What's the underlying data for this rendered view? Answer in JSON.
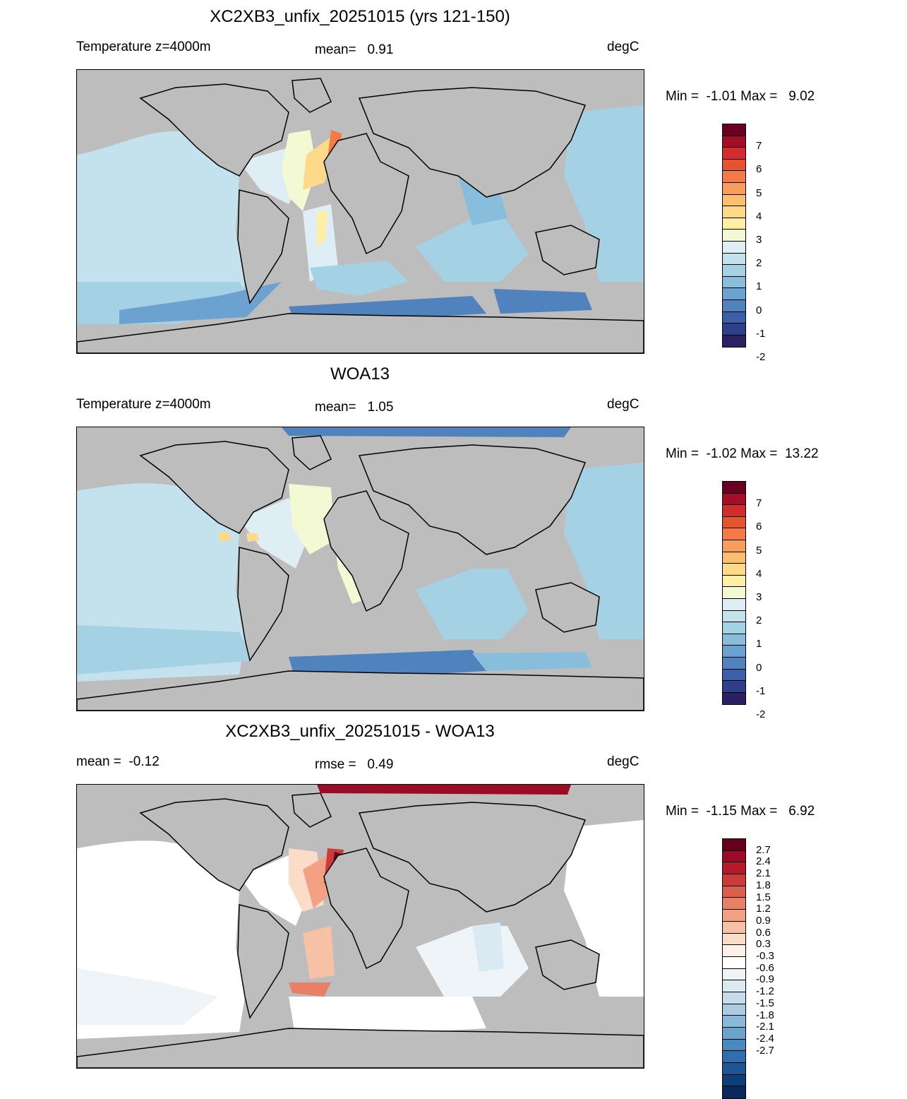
{
  "panels": [
    {
      "title": "XC2XB3_unfix_20251015 (yrs 121-150)",
      "left_label": "Temperature z=4000m",
      "mid_label": "mean=   0.91",
      "right_label": "degC",
      "minmax": "Min =  -1.01 Max =   9.02",
      "colorbar": {
        "colors": [
          "#6b0023",
          "#a50f26",
          "#d42c2c",
          "#e6532f",
          "#f47b46",
          "#f99d58",
          "#fdbf6f",
          "#fed98a",
          "#ffefa4",
          "#f3f9d2",
          "#deeef4",
          "#c3e2ee",
          "#a5d1e5",
          "#88bedc",
          "#6ba2cf",
          "#5082be",
          "#3b5fa8",
          "#2e3f8c",
          "#2c1f63"
        ],
        "labels": [
          "7",
          "6",
          "5",
          "4",
          "3",
          "2",
          "1",
          "0",
          "-1",
          "-2"
        ]
      }
    },
    {
      "title": "WOA13",
      "left_label": "Temperature z=4000m",
      "mid_label": "mean=   1.05",
      "right_label": "degC",
      "minmax": "Min =  -1.02 Max =  13.22",
      "colorbar": {
        "colors": [
          "#6b0023",
          "#a50f26",
          "#d42c2c",
          "#e6532f",
          "#f47b46",
          "#f99d58",
          "#fdbf6f",
          "#fed98a",
          "#ffefa4",
          "#f3f9d2",
          "#deeef4",
          "#c3e2ee",
          "#a5d1e5",
          "#88bedc",
          "#6ba2cf",
          "#5082be",
          "#3b5fa8",
          "#2e3f8c",
          "#2c1f63"
        ],
        "labels": [
          "7",
          "6",
          "5",
          "4",
          "3",
          "2",
          "1",
          "0",
          "-1",
          "-2"
        ]
      }
    },
    {
      "title": "XC2XB3_unfix_20251015 - WOA13",
      "left_label": "mean =  -0.12",
      "mid_label": "rmse =   0.49",
      "right_label": "degC",
      "minmax": "Min =  -1.15 Max =   6.92",
      "colorbar": {
        "colors": [
          "#67001f",
          "#9b0c24",
          "#b8182b",
          "#cc3a3a",
          "#dc5d4b",
          "#e98065",
          "#f2a283",
          "#f7c1a6",
          "#fbdcc8",
          "#fdf0e8",
          "#ffffff",
          "#eef4f8",
          "#dbe9f2",
          "#c4dcec",
          "#a9cce3",
          "#8bb9d9",
          "#6aa3cd",
          "#4989bf",
          "#2f6fae",
          "#1c5696",
          "#0d3f7a",
          "#08295a"
        ],
        "labels": [
          "2.7",
          "2.4",
          "2.1",
          "1.8",
          "1.5",
          "1.2",
          "0.9",
          "0.6",
          "0.3",
          "-0.3",
          "-0.6",
          "-0.9",
          "-1.2",
          "-1.5",
          "-1.8",
          "-2.1",
          "-2.4",
          "-2.7"
        ]
      }
    }
  ]
}
